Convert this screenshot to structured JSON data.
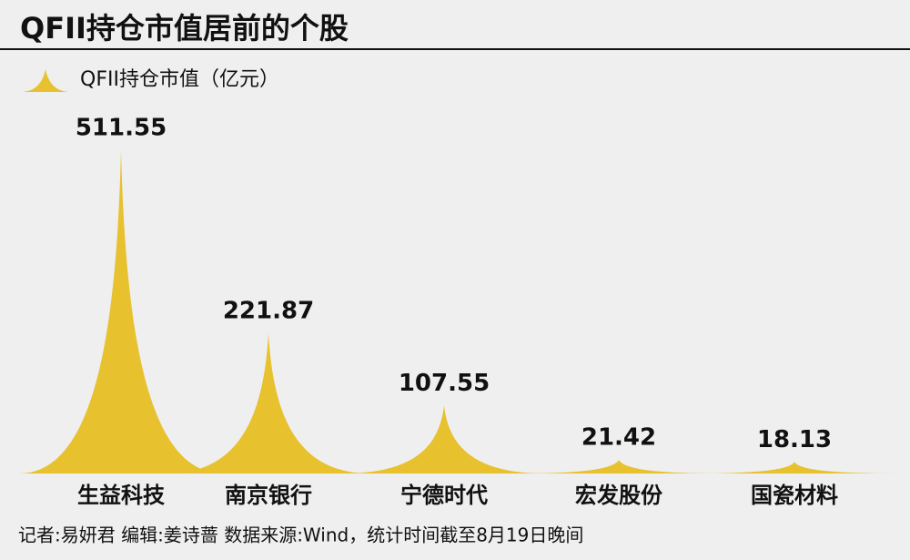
{
  "chart_data": {
    "type": "spike",
    "title": "QFII持仓市值居前的个股",
    "categories": [
      "生益科技",
      "南京银行",
      "宁德时代",
      "宏发股份",
      "国瓷材料"
    ],
    "series": [
      {
        "name": "QFII持仓市值（亿元）",
        "color": "#e8c12f",
        "values": [
          511.55,
          221.87,
          107.55,
          21.42,
          18.13
        ]
      }
    ],
    "footer": "记者:易妍君  编辑:姜诗蔷  数据来源:Wind，统计时间截至8月19日晚间"
  }
}
